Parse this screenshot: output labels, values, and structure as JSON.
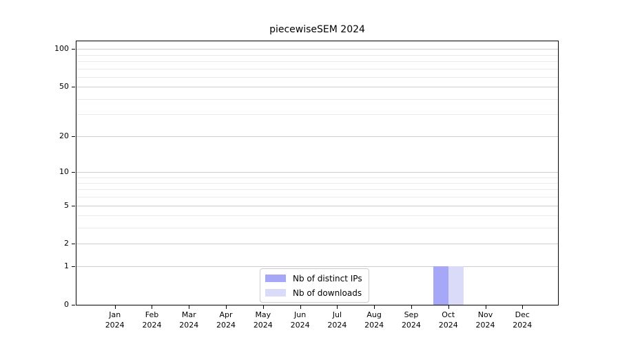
{
  "chart_data": {
    "type": "bar",
    "title": "piecewiseSEM 2024",
    "x_axis": {
      "months": [
        "Jan",
        "Feb",
        "Mar",
        "Apr",
        "May",
        "Jun",
        "Jul",
        "Aug",
        "Sep",
        "Oct",
        "Nov",
        "Dec"
      ],
      "year": "2024"
    },
    "y_axis": {
      "scale": "log1p",
      "major_ticks": [
        0,
        1,
        2,
        5,
        10,
        20,
        50,
        100
      ],
      "minor_ticks": [
        3,
        4,
        6,
        7,
        8,
        9,
        30,
        40,
        60,
        70,
        80,
        90
      ],
      "ylim": [
        0,
        115
      ]
    },
    "series": [
      {
        "name": "Nb of distinct IPs",
        "color": "#a7a7f7",
        "values": [
          0,
          0,
          0,
          0,
          0,
          0,
          0,
          0,
          0,
          1,
          0,
          0
        ]
      },
      {
        "name": "Nb of downloads",
        "color": "#dadaf9",
        "values": [
          0,
          0,
          0,
          0,
          0,
          0,
          0,
          0,
          0,
          1,
          0,
          0
        ]
      }
    ],
    "legend_position": "bottom-center",
    "grid": true
  }
}
